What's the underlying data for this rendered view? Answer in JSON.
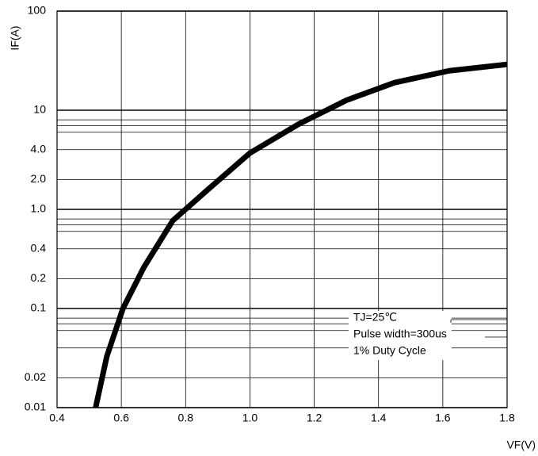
{
  "chart_data": {
    "type": "line",
    "x_label": "VF(V)",
    "y_label": "IF(A)",
    "annotations": [
      "TJ=25℃",
      "Pulse width=300us",
      "1% Duty Cycle"
    ],
    "log_y": true,
    "grid": true,
    "xlim": [
      0.4,
      1.8
    ],
    "xticks": [
      0.4,
      0.6,
      0.8,
      {
        "value": 1,
        "label": "1.0"
      },
      1.2,
      1.4,
      1.6,
      1.8
    ],
    "ylim": [
      0.01,
      100
    ],
    "yticks": [
      0.01,
      0.02,
      0.1,
      0.2,
      0.4,
      {
        "value": 1,
        "label": "1.0"
      },
      {
        "value": 2,
        "label": "2.0"
      },
      {
        "value": 4,
        "label": "4.0"
      },
      10,
      100
    ],
    "minor_yticks": [
      0.04,
      0.06,
      0.07,
      0.08,
      0.6,
      0.7,
      0.8,
      6,
      7,
      8
    ],
    "series": [
      {
        "color": "#000000",
        "x": [
          0.52,
          0.555,
          0.605,
          0.67,
          0.76,
          0.88,
          1.0,
          1.15,
          1.3,
          1.45,
          1.62,
          1.8
        ],
        "values": [
          0.01,
          0.033,
          0.1,
          0.26,
          0.77,
          1.7,
          3.7,
          7.2,
          12.6,
          19,
          25,
          29
        ]
      }
    ]
  }
}
